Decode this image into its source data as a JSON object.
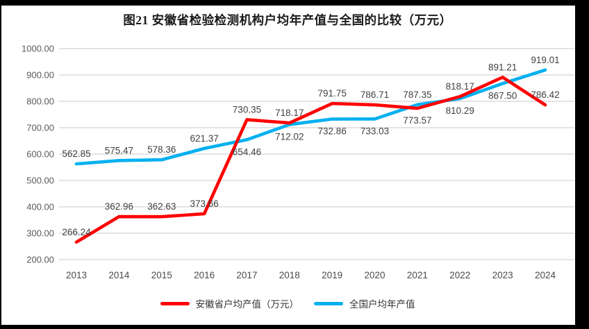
{
  "chart_data": {
    "type": "line",
    "title": "图21 安徽省检验检测机构户均年产值与全国的比较（万元）",
    "categories": [
      "2013",
      "2014",
      "2015",
      "2016",
      "2017",
      "2018",
      "2019",
      "2020",
      "2021",
      "2022",
      "2023",
      "2024"
    ],
    "series": [
      {
        "name": "安徽省户均产值（万元）",
        "color": "#fe0000",
        "values": [
          266.24,
          362.96,
          362.63,
          373.66,
          730.35,
          718.17,
          791.75,
          786.71,
          773.57,
          818.17,
          891.21,
          786.42
        ],
        "label_positions": [
          "above",
          "above",
          "above",
          "above",
          "above",
          "above",
          "above",
          "above",
          "below",
          "above",
          "above",
          "above"
        ]
      },
      {
        "name": "全国户均年产值",
        "color": "#00b0f0",
        "values": [
          562.85,
          575.47,
          578.36,
          621.37,
          654.46,
          712.02,
          732.86,
          733.03,
          787.35,
          810.29,
          867.5,
          919.01
        ],
        "label_positions": [
          "above",
          "above",
          "above",
          "above",
          "below",
          "below",
          "below",
          "below",
          "above",
          "below",
          "below",
          "above"
        ]
      }
    ],
    "y_axis": {
      "min": 200,
      "max": 1000,
      "step": 100,
      "tick_labels": [
        "200.00",
        "300.00",
        "400.00",
        "500.00",
        "600.00",
        "700.00",
        "800.00",
        "900.00",
        "1000.00"
      ]
    },
    "grid": true,
    "legend_position": "bottom",
    "colors": {
      "grid": "#dcdcdc",
      "tick_text": "#595959",
      "axis_text": "#4a4a4a",
      "data_label_text": "#404040",
      "frame": "#000000",
      "background": "#ffffff"
    }
  }
}
